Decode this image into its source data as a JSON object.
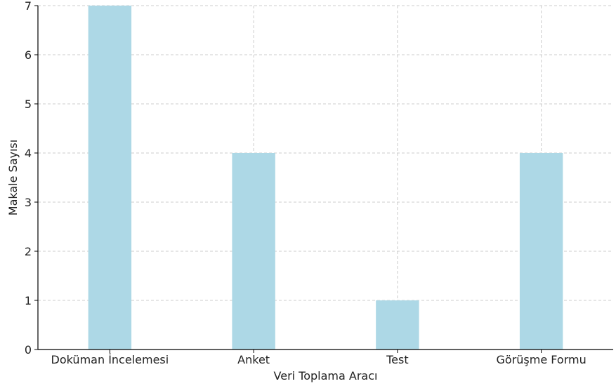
{
  "chart_data": {
    "type": "bar",
    "title": "",
    "xlabel": "Veri Toplama Aracı",
    "ylabel": "Makale Sayısı",
    "categories": [
      "Doküman İncelemesi",
      "Anket",
      "Test",
      "Görüşme Formu"
    ],
    "values": [
      7,
      4,
      1,
      4
    ],
    "ylim": [
      0,
      7
    ],
    "yticks": [
      "0",
      "1",
      "2",
      "3",
      "4",
      "5",
      "6",
      "7"
    ],
    "grid": true,
    "legend": "none",
    "colors": {
      "bar": "#add8e6",
      "grid": "#cccccc",
      "axis": "#000000"
    }
  }
}
